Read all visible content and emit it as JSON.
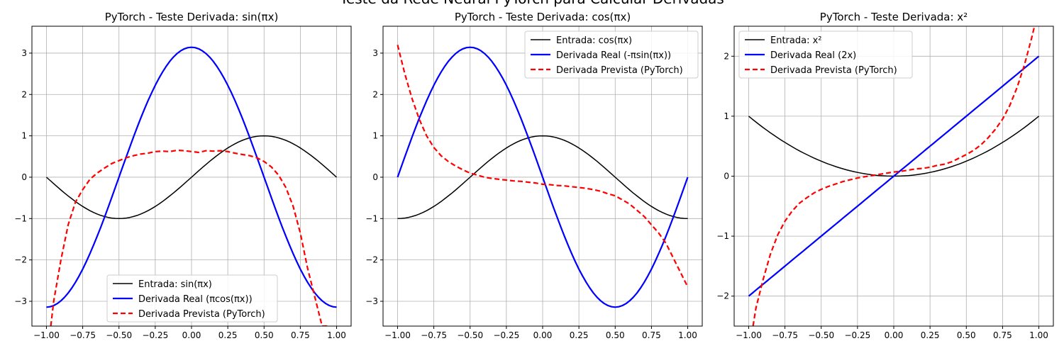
{
  "figure": {
    "suptitle": "Teste da Rede Neural PyTorch para Calcular Derivadas"
  },
  "colors": {
    "input": "#000000",
    "real": "#0000ff",
    "predicted": "#ff0000",
    "grid": "#b0b0b0"
  },
  "chart_data": [
    {
      "type": "line",
      "title": "PyTorch - Teste Derivada: sin(πx)",
      "xlabel": "",
      "ylabel": "",
      "xlim": [
        -1.1,
        1.1
      ],
      "ylim": [
        -3.6,
        3.65
      ],
      "xticks": [
        -1.0,
        -0.75,
        -0.5,
        -0.25,
        0.0,
        0.25,
        0.5,
        0.75,
        1.0
      ],
      "xtick_labels": [
        "−1.00",
        "−0.75",
        "−0.50",
        "−0.25",
        "0.00",
        "0.25",
        "0.50",
        "0.75",
        "1.00"
      ],
      "yticks": [
        -3,
        -2,
        -1,
        0,
        1,
        2,
        3
      ],
      "ytick_labels": [
        "−3",
        "−2",
        "−1",
        "0",
        "1",
        "2",
        "3"
      ],
      "grid": true,
      "legend_position": "lower-center",
      "series": [
        {
          "name": "Entrada: sin(πx)",
          "role": "input",
          "function": "sin(pi*x)"
        },
        {
          "name": "Derivada Real (πcos(πx))",
          "role": "real",
          "function": "pi*cos(pi*x)"
        },
        {
          "name": "Derivada Prevista (PyTorch)",
          "role": "predicted",
          "x": [
            -0.97,
            -0.95,
            -0.9,
            -0.85,
            -0.8,
            -0.75,
            -0.7,
            -0.65,
            -0.6,
            -0.55,
            -0.5,
            -0.45,
            -0.4,
            -0.35,
            -0.3,
            -0.25,
            -0.2,
            -0.15,
            -0.1,
            -0.05,
            0.0,
            0.05,
            0.1,
            0.15,
            0.2,
            0.25,
            0.3,
            0.35,
            0.4,
            0.45,
            0.5,
            0.55,
            0.6,
            0.65,
            0.7,
            0.75,
            0.8,
            0.85,
            0.9,
            0.95
          ],
          "y": [
            -3.6,
            -3.0,
            -2.0,
            -1.15,
            -0.6,
            -0.3,
            -0.05,
            0.1,
            0.22,
            0.33,
            0.4,
            0.47,
            0.52,
            0.56,
            0.58,
            0.62,
            0.63,
            0.62,
            0.65,
            0.64,
            0.62,
            0.6,
            0.64,
            0.63,
            0.64,
            0.62,
            0.58,
            0.55,
            0.52,
            0.47,
            0.38,
            0.25,
            0.05,
            -0.25,
            -0.7,
            -1.35,
            -2.2,
            -2.9,
            -3.6,
            -3.6
          ]
        }
      ]
    },
    {
      "type": "line",
      "title": "PyTorch - Teste Derivada: cos(πx)",
      "xlabel": "",
      "ylabel": "",
      "xlim": [
        -1.1,
        1.1
      ],
      "ylim": [
        -3.6,
        3.65
      ],
      "xticks": [
        -1.0,
        -0.75,
        -0.5,
        -0.25,
        0.0,
        0.25,
        0.5,
        0.75,
        1.0
      ],
      "xtick_labels": [
        "−1.00",
        "−0.75",
        "−0.50",
        "−0.25",
        "0.00",
        "0.25",
        "0.50",
        "0.75",
        "1.00"
      ],
      "yticks": [
        -3,
        -2,
        -1,
        0,
        1,
        2,
        3
      ],
      "ytick_labels": [
        "−3",
        "−2",
        "−1",
        "0",
        "1",
        "2",
        "3"
      ],
      "grid": true,
      "legend_position": "upper-right",
      "series": [
        {
          "name": "Entrada: cos(πx)",
          "role": "input",
          "function": "cos(pi*x)"
        },
        {
          "name": "Derivada Real (-πsin(πx))",
          "role": "real",
          "function": "-pi*sin(pi*x)"
        },
        {
          "name": "Derivada Prevista (PyTorch)",
          "role": "predicted",
          "x": [
            -1.0,
            -0.95,
            -0.9,
            -0.85,
            -0.8,
            -0.75,
            -0.7,
            -0.65,
            -0.6,
            -0.55,
            -0.5,
            -0.45,
            -0.4,
            -0.35,
            -0.3,
            -0.25,
            -0.2,
            -0.15,
            -0.1,
            -0.05,
            0.0,
            0.05,
            0.1,
            0.15,
            0.2,
            0.25,
            0.3,
            0.35,
            0.4,
            0.45,
            0.5,
            0.55,
            0.6,
            0.65,
            0.7,
            0.75,
            0.8,
            0.85,
            0.9,
            0.95,
            1.0
          ],
          "y": [
            3.2,
            2.5,
            1.9,
            1.4,
            1.0,
            0.72,
            0.52,
            0.38,
            0.27,
            0.18,
            0.1,
            0.05,
            0.0,
            -0.03,
            -0.05,
            -0.07,
            -0.09,
            -0.1,
            -0.12,
            -0.14,
            -0.17,
            -0.18,
            -0.2,
            -0.21,
            -0.23,
            -0.25,
            -0.27,
            -0.3,
            -0.34,
            -0.4,
            -0.45,
            -0.55,
            -0.65,
            -0.8,
            -0.95,
            -1.15,
            -1.35,
            -1.6,
            -1.95,
            -2.3,
            -2.65
          ]
        }
      ]
    },
    {
      "type": "line",
      "title": "PyTorch - Teste Derivada: x²",
      "xlabel": "",
      "ylabel": "",
      "xlim": [
        -1.1,
        1.1
      ],
      "ylim": [
        -2.5,
        2.5
      ],
      "xticks": [
        -1.0,
        -0.75,
        -0.5,
        -0.25,
        0.0,
        0.25,
        0.5,
        0.75,
        1.0
      ],
      "xtick_labels": [
        "−1.00",
        "−0.75",
        "−0.50",
        "−0.25",
        "0.00",
        "0.25",
        "0.50",
        "0.75",
        "1.00"
      ],
      "yticks": [
        -2,
        -1,
        0,
        1,
        2
      ],
      "ytick_labels": [
        "−2",
        "−1",
        "0",
        "1",
        "2"
      ],
      "grid": true,
      "legend_position": "upper-left",
      "series": [
        {
          "name": "Entrada: x²",
          "role": "input",
          "function": "x*x"
        },
        {
          "name": "Derivada Real (2x)",
          "role": "real",
          "function": "2*x"
        },
        {
          "name": "Derivada Prevista (PyTorch)",
          "role": "predicted",
          "x": [
            -0.97,
            -0.95,
            -0.9,
            -0.85,
            -0.8,
            -0.75,
            -0.7,
            -0.65,
            -0.6,
            -0.55,
            -0.5,
            -0.45,
            -0.4,
            -0.35,
            -0.3,
            -0.25,
            -0.2,
            -0.15,
            -0.1,
            -0.05,
            0.0,
            0.05,
            0.1,
            0.15,
            0.2,
            0.25,
            0.3,
            0.35,
            0.4,
            0.45,
            0.5,
            0.55,
            0.6,
            0.65,
            0.7,
            0.75,
            0.8,
            0.85,
            0.9,
            0.95,
            0.97
          ],
          "y": [
            -2.5,
            -2.2,
            -1.72,
            -1.3,
            -0.98,
            -0.75,
            -0.58,
            -0.45,
            -0.36,
            -0.28,
            -0.22,
            -0.17,
            -0.13,
            -0.09,
            -0.06,
            -0.03,
            -0.01,
            0.01,
            0.03,
            0.05,
            0.07,
            0.08,
            0.1,
            0.12,
            0.13,
            0.15,
            0.18,
            0.2,
            0.24,
            0.3,
            0.36,
            0.43,
            0.52,
            0.64,
            0.78,
            0.95,
            1.18,
            1.48,
            1.85,
            2.3,
            2.5
          ]
        }
      ]
    }
  ]
}
